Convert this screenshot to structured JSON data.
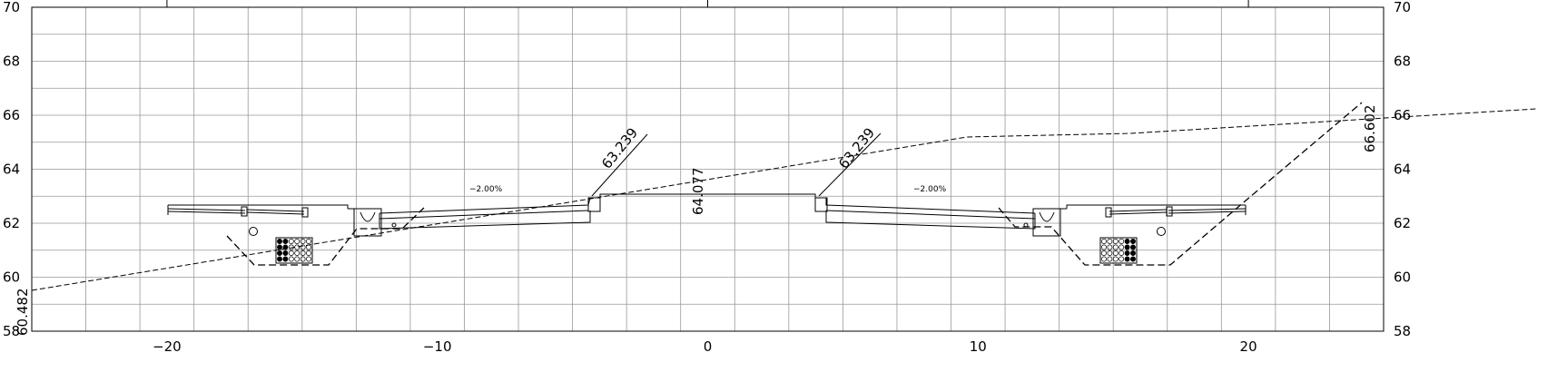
{
  "axes": {
    "x_ticks": [
      "−20",
      "−10",
      "0",
      "10",
      "20"
    ],
    "x_tick_values": [
      -20,
      -10,
      0,
      10,
      20
    ],
    "y_ticks": [
      "58",
      "60",
      "62",
      "64",
      "66",
      "68",
      "70"
    ],
    "y_tick_values": [
      58,
      60,
      62,
      64,
      66,
      68,
      70
    ],
    "x_range": [
      -25,
      25
    ],
    "y_range": [
      58,
      70
    ],
    "grid": true
  },
  "labels": {
    "ground_left": "60.482",
    "ground_right": "66.602",
    "centre": "64.077",
    "edge_left": "63.239",
    "edge_right": "63.239",
    "slope_left": "−2.00%",
    "slope_right": "−2.00%"
  },
  "colors": {
    "grid": "#999999",
    "ink": "#000000"
  }
}
